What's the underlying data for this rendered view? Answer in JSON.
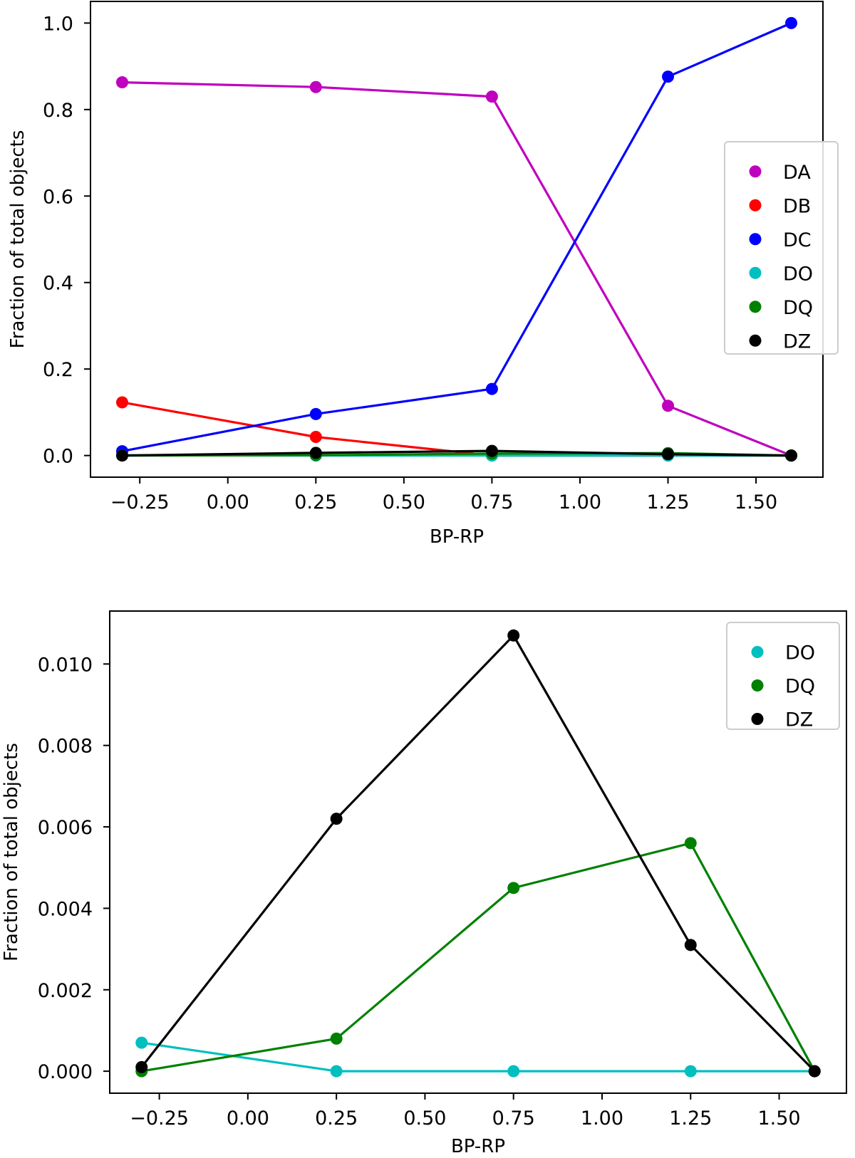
{
  "chart_data": [
    {
      "type": "line",
      "xlabel": "BP-RP",
      "ylabel": "Fraction of total objects",
      "xlim": [
        -0.39,
        1.69
      ],
      "ylim": [
        -0.05,
        1.05
      ],
      "xticks": [
        -0.25,
        0.0,
        0.25,
        0.5,
        0.75,
        1.0,
        1.25,
        1.5
      ],
      "xtick_labels": [
        "−0.25",
        "0.00",
        "0.25",
        "0.50",
        "0.75",
        "1.00",
        "1.25",
        "1.50"
      ],
      "yticks": [
        0.0,
        0.2,
        0.4,
        0.6,
        0.8,
        1.0
      ],
      "ytick_labels": [
        "0.0",
        "0.2",
        "0.4",
        "0.6",
        "0.8",
        "1.0"
      ],
      "legend_position": "center-right",
      "x": [
        -0.3,
        0.25,
        0.75,
        1.25,
        1.6
      ],
      "series": [
        {
          "name": "DA",
          "color": "#bf00bf",
          "values": [
            0.863,
            0.852,
            0.83,
            0.115,
            0.0
          ]
        },
        {
          "name": "DB",
          "color": "#ff0000",
          "values": [
            0.123,
            0.043,
            0.0,
            0.0,
            0.0
          ]
        },
        {
          "name": "DC",
          "color": "#0000ff",
          "values": [
            0.01,
            0.096,
            0.154,
            0.876,
            1.0
          ]
        },
        {
          "name": "DO",
          "color": "#00bfbf",
          "values": [
            0.0007,
            0.0,
            0.0,
            0.0,
            0.0
          ]
        },
        {
          "name": "DQ",
          "color": "#008000",
          "values": [
            0.0,
            0.0008,
            0.0045,
            0.0056,
            0.0
          ]
        },
        {
          "name": "DZ",
          "color": "#000000",
          "values": [
            0.0001,
            0.0062,
            0.0107,
            0.0031,
            0.0
          ]
        }
      ]
    },
    {
      "type": "line",
      "xlabel": "BP-RP",
      "ylabel": "Fraction of total objects",
      "xlim": [
        -0.39,
        1.69
      ],
      "ylim": [
        -0.00054,
        0.0113
      ],
      "xticks": [
        -0.25,
        0.0,
        0.25,
        0.5,
        0.75,
        1.0,
        1.25,
        1.5
      ],
      "xtick_labels": [
        "−0.25",
        "0.00",
        "0.25",
        "0.50",
        "0.75",
        "1.00",
        "1.25",
        "1.50"
      ],
      "yticks": [
        0.0,
        0.002,
        0.004,
        0.006,
        0.008,
        0.01
      ],
      "ytick_labels": [
        "0.000",
        "0.002",
        "0.004",
        "0.006",
        "0.008",
        "0.010"
      ],
      "legend_position": "top-right",
      "x": [
        -0.3,
        0.25,
        0.75,
        1.25,
        1.6
      ],
      "series": [
        {
          "name": "DO",
          "color": "#00bfbf",
          "values": [
            0.0007,
            0.0,
            0.0,
            0.0,
            0.0
          ]
        },
        {
          "name": "DQ",
          "color": "#008000",
          "values": [
            0.0,
            0.0008,
            0.0045,
            0.0056,
            0.0
          ]
        },
        {
          "name": "DZ",
          "color": "#000000",
          "values": [
            0.0001,
            0.0062,
            0.0107,
            0.0031,
            0.0
          ]
        }
      ]
    }
  ]
}
